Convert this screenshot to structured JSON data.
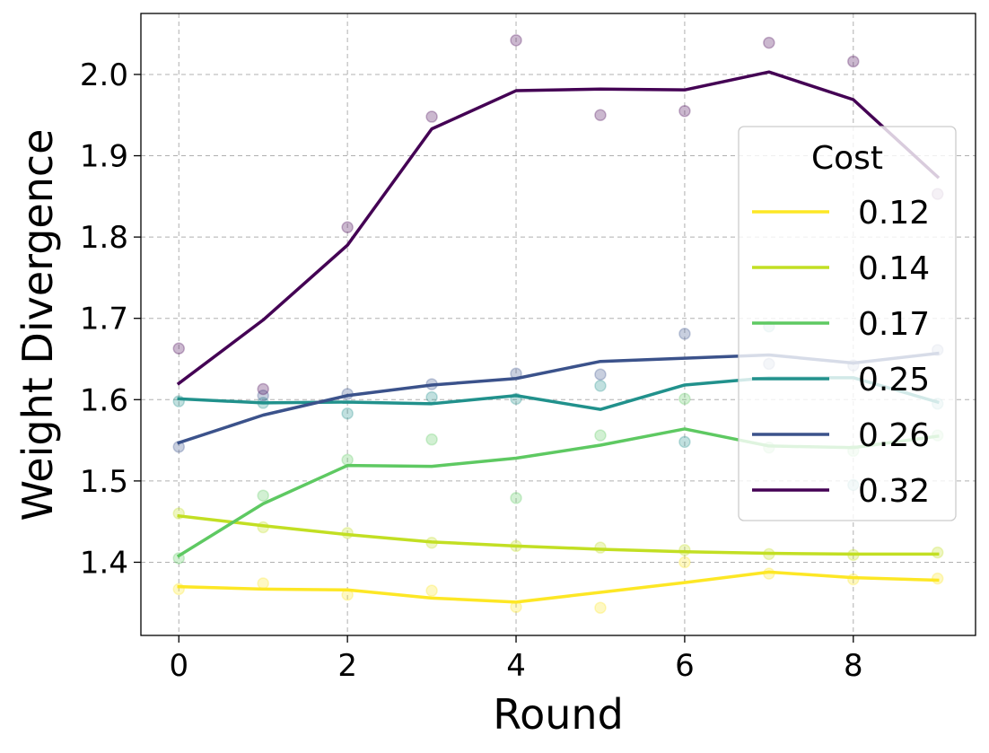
{
  "chart_data": {
    "type": "line",
    "xlabel": "Round",
    "ylabel": "Weight Divergence",
    "xlim": [
      -0.45,
      9.45
    ],
    "ylim": [
      1.31,
      2.075
    ],
    "xticks": [
      0,
      2,
      4,
      6,
      8
    ],
    "xtick_labels": [
      "0",
      "2",
      "4",
      "6",
      "8"
    ],
    "yticks": [
      1.4,
      1.5,
      1.6,
      1.7,
      1.8,
      1.9,
      2.0
    ],
    "ytick_labels": [
      "1.4",
      "1.5",
      "1.6",
      "1.7",
      "1.8",
      "1.9",
      "2.0"
    ],
    "grid": true,
    "legend": {
      "title": "Cost",
      "placement": "right"
    },
    "x": [
      0,
      1,
      2,
      3,
      4,
      5,
      6,
      7,
      8,
      9
    ],
    "series": [
      {
        "name": "0.12",
        "color": "#fde725",
        "line": [
          1.37,
          1.367,
          1.366,
          1.356,
          1.351,
          1.363,
          1.375,
          1.388,
          1.381,
          1.378
        ],
        "points": [
          1.367,
          1.374,
          1.36,
          1.365,
          1.345,
          1.344,
          1.4,
          1.386,
          1.379,
          1.38
        ]
      },
      {
        "name": "0.14",
        "color": "#c2df23",
        "line": [
          1.457,
          1.445,
          1.434,
          1.425,
          1.42,
          1.416,
          1.413,
          1.411,
          1.41,
          1.41
        ],
        "points": [
          1.46,
          1.443,
          1.436,
          1.424,
          1.42,
          1.418,
          1.415,
          1.41,
          1.409,
          1.412
        ]
      },
      {
        "name": "0.17",
        "color": "#5ec962",
        "line": [
          1.408,
          1.472,
          1.519,
          1.518,
          1.528,
          1.544,
          1.564,
          1.543,
          1.541,
          1.555
        ],
        "points": [
          1.405,
          1.482,
          1.526,
          1.551,
          1.479,
          1.556,
          1.601,
          1.541,
          1.537,
          1.556
        ]
      },
      {
        "name": "0.25",
        "color": "#21918c",
        "line": [
          1.601,
          1.596,
          1.597,
          1.595,
          1.605,
          1.588,
          1.618,
          1.627,
          1.627,
          1.597
        ],
        "points": [
          1.598,
          1.596,
          1.583,
          1.603,
          1.601,
          1.617,
          1.548,
          1.69,
          1.495,
          1.595
        ]
      },
      {
        "name": "0.26",
        "color": "#3b528b",
        "line": [
          1.547,
          1.581,
          1.605,
          1.618,
          1.626,
          1.647,
          1.651,
          1.655,
          1.645,
          1.657
        ],
        "points": [
          1.542,
          1.605,
          1.607,
          1.619,
          1.632,
          1.631,
          1.681,
          1.644,
          1.642,
          1.661
        ]
      },
      {
        "name": "0.32",
        "color": "#440154",
        "line": [
          1.62,
          1.698,
          1.79,
          1.933,
          1.98,
          1.982,
          1.981,
          2.003,
          1.969,
          1.874
        ],
        "points": [
          1.663,
          1.613,
          1.812,
          1.948,
          2.042,
          1.95,
          1.955,
          2.039,
          2.016,
          1.853
        ]
      }
    ]
  }
}
